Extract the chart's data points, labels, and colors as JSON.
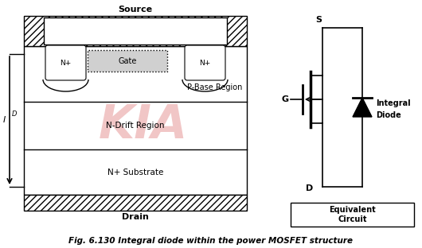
{
  "title": "Fig. 6.130 Integral diode within the power MOSFET structure",
  "source_label": "Source",
  "drain_label": "Drain",
  "gate_label": "Gate",
  "nplus_label": "N+",
  "pbase_label": "P-Base Region",
  "ndrift_label": "N-Drift Region",
  "nsubstrate_label": "N+ Substrate",
  "id_label": "I",
  "id_sub": "D",
  "s_label": "S",
  "g_label": "G",
  "d_label": "D",
  "integral_label": "Integral",
  "diode_label": "Diode",
  "equiv_label": "Equivalent\nCircuit",
  "kia_color": "#e8a0a0",
  "bg_color": "#ffffff",
  "fig_width": 5.3,
  "fig_height": 3.12,
  "dpi": 100
}
